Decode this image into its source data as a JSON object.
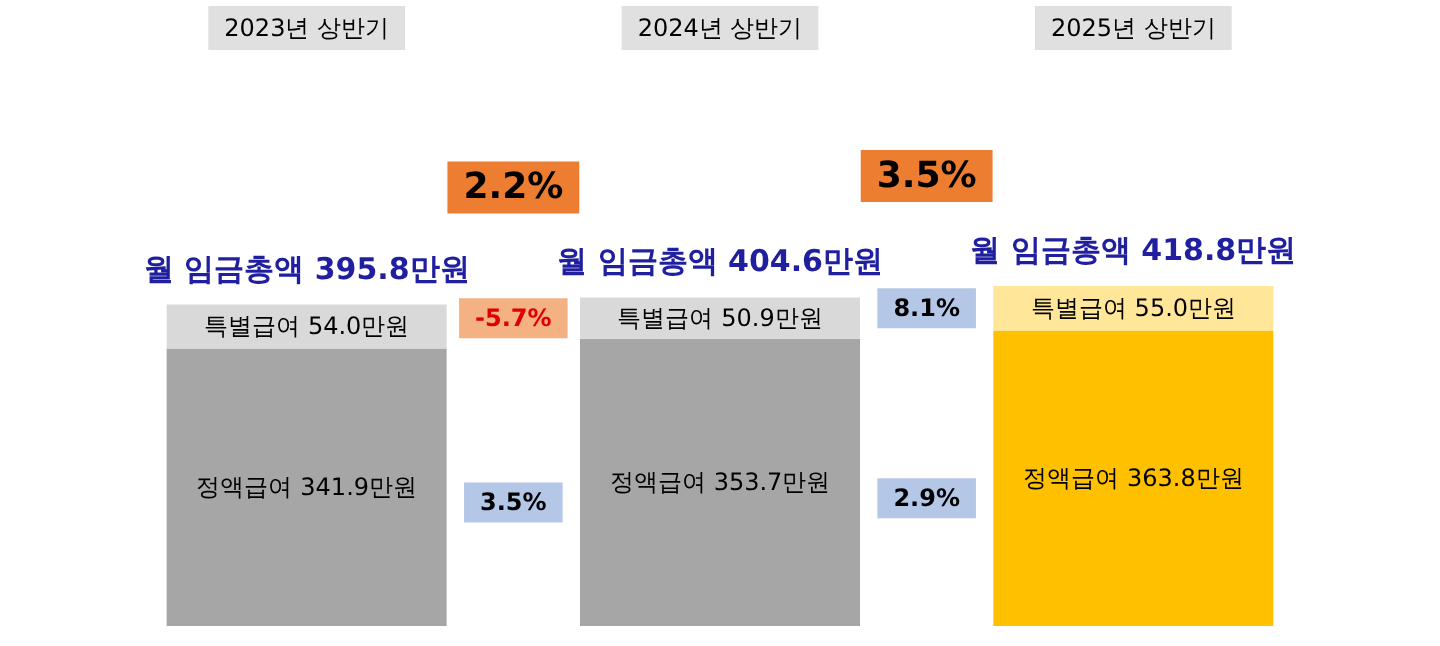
{
  "chart_data": {
    "type": "bar",
    "stacked": true,
    "legend": false,
    "grid": false,
    "categories": [
      "2023년 상반기",
      "2024년 상반기",
      "2025년 상반기"
    ],
    "series": [
      {
        "name": "정액급여",
        "values": [
          341.9,
          353.7,
          363.8
        ],
        "colors": [
          "#a6a6a6",
          "#a6a6a6",
          "#ffc000"
        ],
        "value_labels": [
          "341.9만원",
          "353.7만원",
          "363.8만원"
        ]
      },
      {
        "name": "특별급여",
        "values": [
          54.0,
          50.9,
          55.0
        ],
        "colors": [
          "#d9d9d9",
          "#d9d9d9",
          "#ffe699"
        ],
        "value_labels": [
          "54.0만원",
          "50.9만원",
          "55.0만원"
        ]
      }
    ],
    "totals": [
      "월 임금총액 395.8만원",
      "월 임금총액 404.6만원",
      "월 임금총액 418.8만원"
    ],
    "annotations": [
      "2.2%",
      "3.5%",
      "-5.7%",
      "8.1%",
      "3.5%",
      "2.9%"
    ]
  }
}
